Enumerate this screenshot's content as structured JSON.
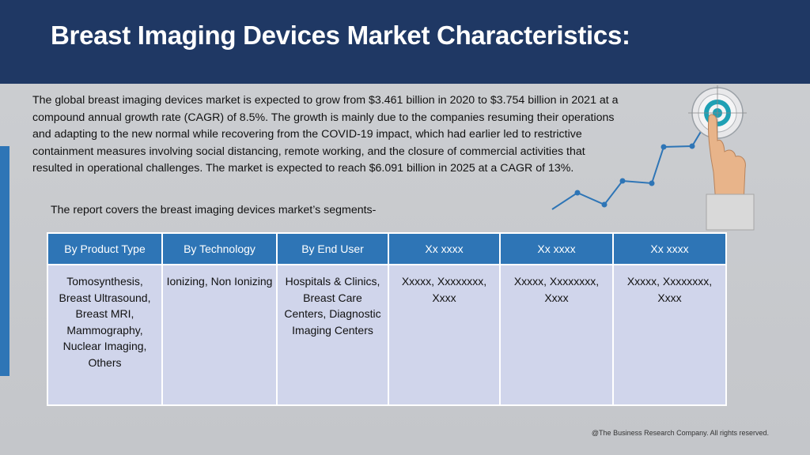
{
  "header": {
    "title": "Breast Imaging Devices Market Characteristics:"
  },
  "body": {
    "paragraph": "The global breast imaging devices market is expected to grow from $3.461 billion in 2020 to $3.754 billion in 2021 at a compound annual growth rate (CAGR) of 8.5%. The growth is mainly due to the companies resuming their operations and adapting to the new normal while recovering from the COVID-19 impact, which had earlier led to restrictive containment measures involving social distancing, remote working, and the closure of commercial activities that resulted in operational challenges. The market is expected to reach $6.091 billion in 2025 at a CAGR of 13%.",
    "segments_intro": "The report covers the breast imaging devices market’s segments-"
  },
  "table": {
    "headers": [
      "By Product Type",
      "By Technology",
      "By End User",
      "Xx xxxx",
      "Xx xxxx",
      "Xx xxxx"
    ],
    "cells": [
      "Tomosynthesis, Breast Ultrasound, Breast MRI, Mammography, Nuclear Imaging, Others",
      "Ionizing, Non Ionizing",
      "Hospitals & Clinics, Breast Care Centers, Diagnostic Imaging Centers",
      "Xxxxx, Xxxxxxxx, Xxxx",
      "Xxxxx, Xxxxxxxx, Xxxx",
      "Xxxxx, Xxxxxxxx, Xxxx"
    ]
  },
  "footer": {
    "copyright": "@The Business Research Company. All rights reserved."
  },
  "colors": {
    "header_bg": "#1f3864",
    "accent_blue": "#2e75b6",
    "table_cell_bg": "#d0d5eb",
    "target_teal": "#1ea0b4"
  },
  "icons": [
    "growth-line-chart-icon",
    "target-icon",
    "pointing-hand-icon"
  ]
}
